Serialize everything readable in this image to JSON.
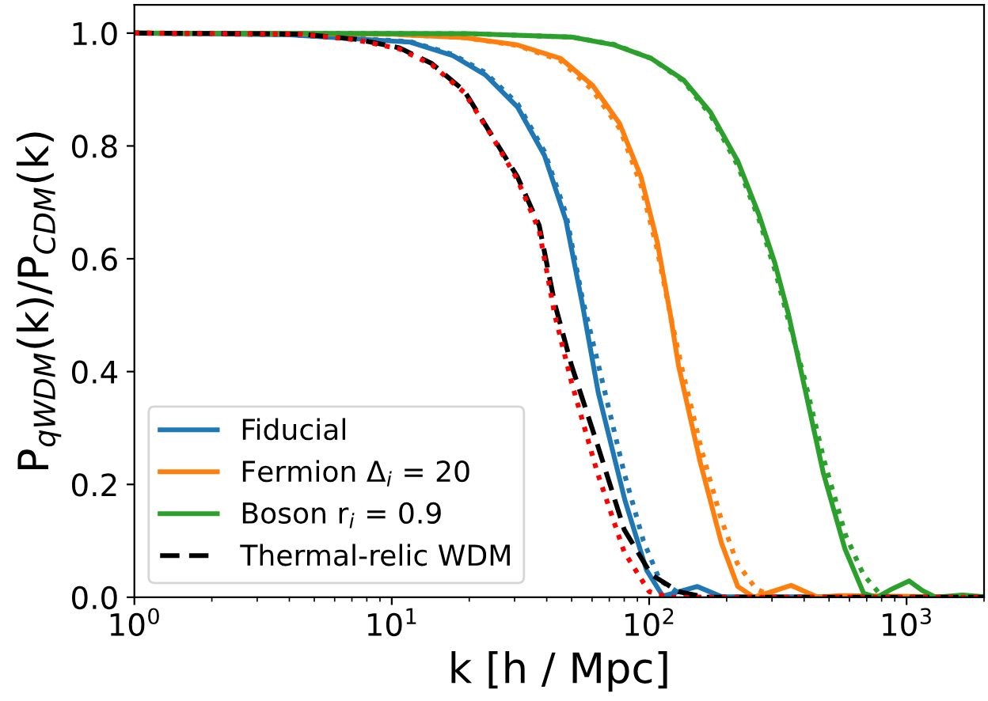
{
  "chart_data": {
    "type": "line",
    "xlabel": "k [h / Mpc]",
    "ylabel": "P$_{qWDM}$(k)/P$_{CDM}$(k)",
    "log": "x",
    "xlim": [
      1,
      2000
    ],
    "ylim": [
      0,
      1.05
    ],
    "xticks": [
      {
        "value": 1,
        "label": "10$^{0}$"
      },
      {
        "value": 10,
        "label": "10$^{1}$"
      },
      {
        "value": 100,
        "label": "10$^{2}$"
      },
      {
        "value": 1000,
        "label": "10$^{3}$"
      }
    ],
    "yticks": [
      {
        "value": 0,
        "label": "0.0"
      },
      {
        "value": 0.2,
        "label": "0.2"
      },
      {
        "value": 0.4,
        "label": "0.4"
      },
      {
        "value": 0.6,
        "label": "0.6"
      },
      {
        "value": 0.8,
        "label": "0.8"
      },
      {
        "value": 1.0,
        "label": "1.0"
      }
    ],
    "legend": "bottom left",
    "grid": false,
    "series": [
      {
        "name": "Fiducial",
        "color": "#1f77b4",
        "line_style": "solid",
        "x": [
          1,
          4,
          11.8,
          17.3,
          23.1,
          30.8,
          39.2,
          47.5,
          55,
          63.4,
          80.5,
          97.7,
          113,
          135,
          154,
          191,
          2000
        ],
        "values": [
          1,
          0.997,
          0.984,
          0.96,
          0.926,
          0.869,
          0.783,
          0.668,
          0.52,
          0.363,
          0.172,
          0.048,
          0.002,
          0.012,
          0.019,
          0.001,
          0
        ]
      },
      {
        "color": "#1f77b4",
        "line_style": "dotted",
        "x": [
          1,
          4,
          11.8,
          17.3,
          23.1,
          30.8,
          39.2,
          47.5,
          55,
          66,
          80,
          95,
          110,
          135,
          160,
          2000
        ],
        "values": [
          1,
          0.997,
          0.985,
          0.962,
          0.93,
          0.875,
          0.79,
          0.68,
          0.53,
          0.38,
          0.22,
          0.1,
          0.03,
          0.003,
          0,
          0
        ]
      },
      {
        "name": "Fermion Δ$_{i}$ = 20",
        "color": "#ff7f0e",
        "line_style": "solid",
        "x": [
          1,
          10,
          19.1,
          30.8,
          45.3,
          60.4,
          76.7,
          93,
          107.5,
          121,
          130,
          158,
          191,
          221,
          255,
          300,
          356,
          452,
          550,
          2000
        ],
        "values": [
          1,
          0.998,
          0.992,
          0.979,
          0.955,
          0.907,
          0.84,
          0.745,
          0.63,
          0.5,
          0.411,
          0.239,
          0.096,
          0.019,
          0,
          0.01,
          0.021,
          0,
          0.003,
          0
        ]
      },
      {
        "color": "#ff7f0e",
        "line_style": "dotted",
        "x": [
          1,
          10,
          19.1,
          30.8,
          45,
          60,
          77,
          93,
          107,
          121,
          135,
          160,
          190,
          220,
          260,
          300,
          340,
          2000
        ],
        "values": [
          1,
          0.998,
          0.992,
          0.978,
          0.952,
          0.9,
          0.83,
          0.73,
          0.62,
          0.5,
          0.4,
          0.26,
          0.14,
          0.06,
          0.015,
          0.002,
          0,
          0
        ]
      },
      {
        "name": "Boson r$_{i}$ = 0.9",
        "color": "#2ca02c",
        "line_style": "solid",
        "x": [
          1,
          20,
          49.9,
          73.2,
          102,
          136,
          173,
          221,
          267,
          308,
          348,
          393,
          475,
          576,
          681,
          767,
          880,
          1023,
          1150,
          1300,
          1650,
          2000
        ],
        "values": [
          1,
          0.999,
          0.993,
          0.979,
          0.955,
          0.917,
          0.86,
          0.773,
          0.678,
          0.592,
          0.501,
          0.392,
          0.22,
          0.086,
          0.007,
          0,
          0.015,
          0.029,
          0.012,
          0,
          0.004,
          0.001
        ]
      },
      {
        "color": "#2ca02c",
        "line_style": "dotted",
        "x": [
          1,
          20,
          50,
          73,
          102,
          136,
          173,
          221,
          267,
          308,
          348,
          400,
          480,
          580,
          680,
          780,
          860,
          2000
        ],
        "values": [
          1,
          0.999,
          0.993,
          0.98,
          0.955,
          0.915,
          0.855,
          0.765,
          0.67,
          0.58,
          0.49,
          0.39,
          0.24,
          0.11,
          0.04,
          0.008,
          0,
          0
        ]
      },
      {
        "name": "Thermal-relic WDM",
        "color": "#000000",
        "line_style": "dashed",
        "x": [
          1,
          3,
          4.5,
          7.3,
          10.7,
          14.3,
          19.1,
          24.3,
          30.8,
          37.4,
          43,
          50,
          63,
          80,
          102,
          130,
          165,
          2000
        ],
        "values": [
          1,
          0.999,
          0.998,
          0.989,
          0.974,
          0.946,
          0.898,
          0.821,
          0.745,
          0.659,
          0.52,
          0.41,
          0.27,
          0.12,
          0.04,
          0.01,
          0,
          0
        ]
      },
      {
        "color": "#ff0000",
        "line_style": "dotted",
        "x": [
          1,
          3,
          4.5,
          7.3,
          10.7,
          14.3,
          19.1,
          24.3,
          30.8,
          37.4,
          43,
          50,
          63,
          80,
          100,
          120,
          2000
        ],
        "values": [
          1,
          0.999,
          0.998,
          0.988,
          0.972,
          0.944,
          0.895,
          0.82,
          0.74,
          0.65,
          0.5,
          0.38,
          0.22,
          0.08,
          0.01,
          0,
          0
        ]
      }
    ]
  }
}
